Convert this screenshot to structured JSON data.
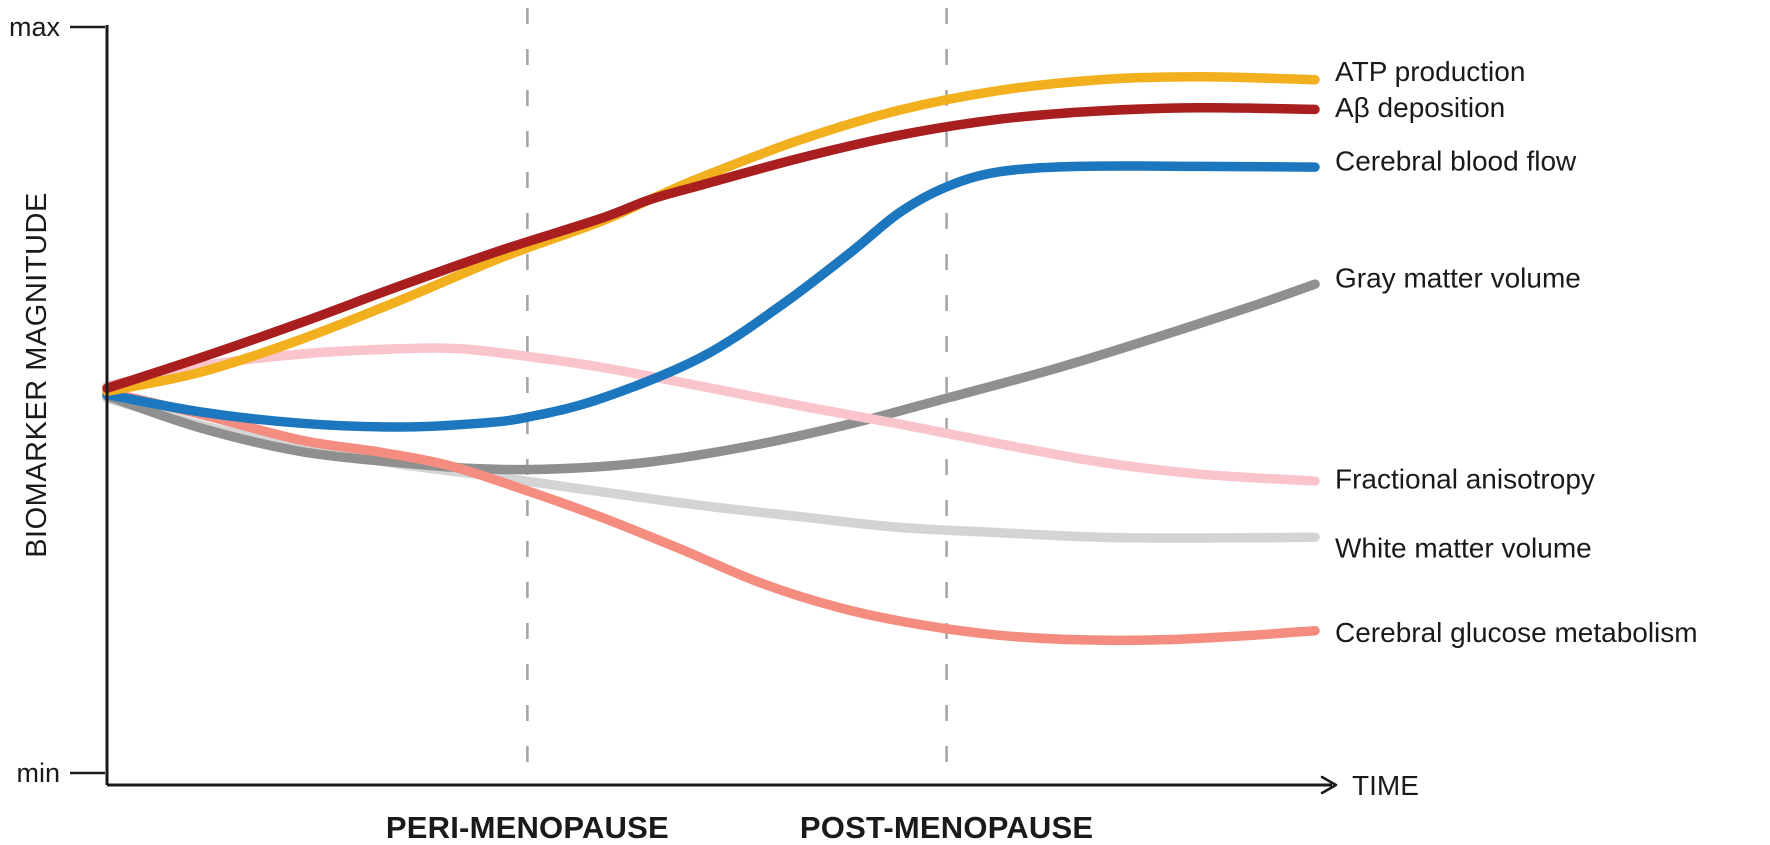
{
  "figure": {
    "background": "#ffffff",
    "axis_color": "#1a1a1a",
    "dashed_line_color": "#a3a3a3"
  },
  "y_axis": {
    "label": "BIOMARKER MAGNITUDE",
    "max_tick": "max",
    "min_tick": "min"
  },
  "x_axis": {
    "label": "TIME",
    "milestones": [
      {
        "id": "peri-menopause",
        "label": "PERI-MENOPAUSE",
        "t": 0.348
      },
      {
        "id": "post-menopause",
        "label": "POST-MENOPAUSE",
        "t": 0.695
      }
    ]
  },
  "chart_data": {
    "type": "line",
    "title": "",
    "xlabel": "TIME",
    "ylabel": "BIOMARKER MAGNITUDE",
    "ylim": [
      "min",
      "max"
    ],
    "grid": false,
    "legend_position": "right-of-line-ends",
    "annotations": [
      "PERI-MENOPAUSE",
      "POST-MENOPAUSE"
    ],
    "x_range_note": "t is normalized time 0-1; m is normalized biomarker magnitude 0 (min) to 1 (max)",
    "series": [
      {
        "name": "White matter volume",
        "color": "#d4d4d4",
        "points": [
          [
            0,
            0.509
          ],
          [
            0.077,
            0.474
          ],
          [
            0.16,
            0.445
          ],
          [
            0.243,
            0.422
          ],
          [
            0.325,
            0.405
          ],
          [
            0.408,
            0.386
          ],
          [
            0.491,
            0.368
          ],
          [
            0.574,
            0.353
          ],
          [
            0.656,
            0.339
          ],
          [
            0.739,
            0.332
          ],
          [
            0.822,
            0.326
          ],
          [
            0.905,
            0.325
          ],
          [
            1,
            0.326
          ]
        ]
      },
      {
        "name": "Gray matter volume",
        "color": "#8f8f8f",
        "points": [
          [
            0,
            0.512
          ],
          [
            0.077,
            0.47
          ],
          [
            0.16,
            0.439
          ],
          [
            0.243,
            0.424
          ],
          [
            0.309,
            0.416
          ],
          [
            0.375,
            0.416
          ],
          [
            0.449,
            0.425
          ],
          [
            0.532,
            0.446
          ],
          [
            0.615,
            0.475
          ],
          [
            0.695,
            0.509
          ],
          [
            0.781,
            0.546
          ],
          [
            0.863,
            0.586
          ],
          [
            0.946,
            0.629
          ],
          [
            1,
            0.659
          ]
        ]
      },
      {
        "name": "Cerebral glucose metabolism",
        "color": "#f48d7f",
        "points": [
          [
            0,
            0.517
          ],
          [
            0.077,
            0.488
          ],
          [
            0.16,
            0.454
          ],
          [
            0.226,
            0.438
          ],
          [
            0.284,
            0.42
          ],
          [
            0.348,
            0.387
          ],
          [
            0.408,
            0.353
          ],
          [
            0.474,
            0.311
          ],
          [
            0.541,
            0.266
          ],
          [
            0.607,
            0.233
          ],
          [
            0.673,
            0.211
          ],
          [
            0.739,
            0.197
          ],
          [
            0.805,
            0.191
          ],
          [
            0.872,
            0.191
          ],
          [
            0.938,
            0.196
          ],
          [
            1,
            0.203
          ]
        ]
      },
      {
        "name": "Fractional anisotropy",
        "color": "#f9c4cc",
        "points": [
          [
            0,
            0.525
          ],
          [
            0.077,
            0.551
          ],
          [
            0.16,
            0.567
          ],
          [
            0.243,
            0.574
          ],
          [
            0.292,
            0.574
          ],
          [
            0.348,
            0.564
          ],
          [
            0.408,
            0.55
          ],
          [
            0.491,
            0.525
          ],
          [
            0.574,
            0.499
          ],
          [
            0.656,
            0.475
          ],
          [
            0.739,
            0.449
          ],
          [
            0.822,
            0.425
          ],
          [
            0.905,
            0.409
          ],
          [
            1,
            0.4
          ]
        ]
      },
      {
        "name": "Cerebral blood flow",
        "color": "#1c77be",
        "points": [
          [
            0,
            0.514
          ],
          [
            0.077,
            0.491
          ],
          [
            0.16,
            0.476
          ],
          [
            0.243,
            0.471
          ],
          [
            0.309,
            0.476
          ],
          [
            0.348,
            0.484
          ],
          [
            0.408,
            0.508
          ],
          [
            0.491,
            0.562
          ],
          [
            0.557,
            0.63
          ],
          [
            0.615,
            0.7
          ],
          [
            0.656,
            0.753
          ],
          [
            0.695,
            0.787
          ],
          [
            0.739,
            0.807
          ],
          [
            0.805,
            0.814
          ],
          [
            0.905,
            0.814
          ],
          [
            1,
            0.813
          ]
        ]
      },
      {
        "name": "ATP production",
        "color": "#f2b01e",
        "points": [
          [
            0,
            0.518
          ],
          [
            0.077,
            0.543
          ],
          [
            0.16,
            0.586
          ],
          [
            0.243,
            0.638
          ],
          [
            0.325,
            0.693
          ],
          [
            0.408,
            0.741
          ],
          [
            0.449,
            0.77
          ],
          [
            0.491,
            0.799
          ],
          [
            0.574,
            0.849
          ],
          [
            0.656,
            0.888
          ],
          [
            0.739,
            0.914
          ],
          [
            0.822,
            0.928
          ],
          [
            0.905,
            0.932
          ],
          [
            1,
            0.928
          ]
        ]
      },
      {
        "name": "Aβ deposition",
        "color": "#a91e1e",
        "points": [
          [
            0,
            0.522
          ],
          [
            0.077,
            0.562
          ],
          [
            0.16,
            0.608
          ],
          [
            0.243,
            0.657
          ],
          [
            0.325,
            0.703
          ],
          [
            0.408,
            0.745
          ],
          [
            0.449,
            0.77
          ],
          [
            0.491,
            0.789
          ],
          [
            0.574,
            0.825
          ],
          [
            0.656,
            0.855
          ],
          [
            0.739,
            0.876
          ],
          [
            0.822,
            0.887
          ],
          [
            0.905,
            0.891
          ],
          [
            1,
            0.889
          ]
        ]
      }
    ]
  }
}
